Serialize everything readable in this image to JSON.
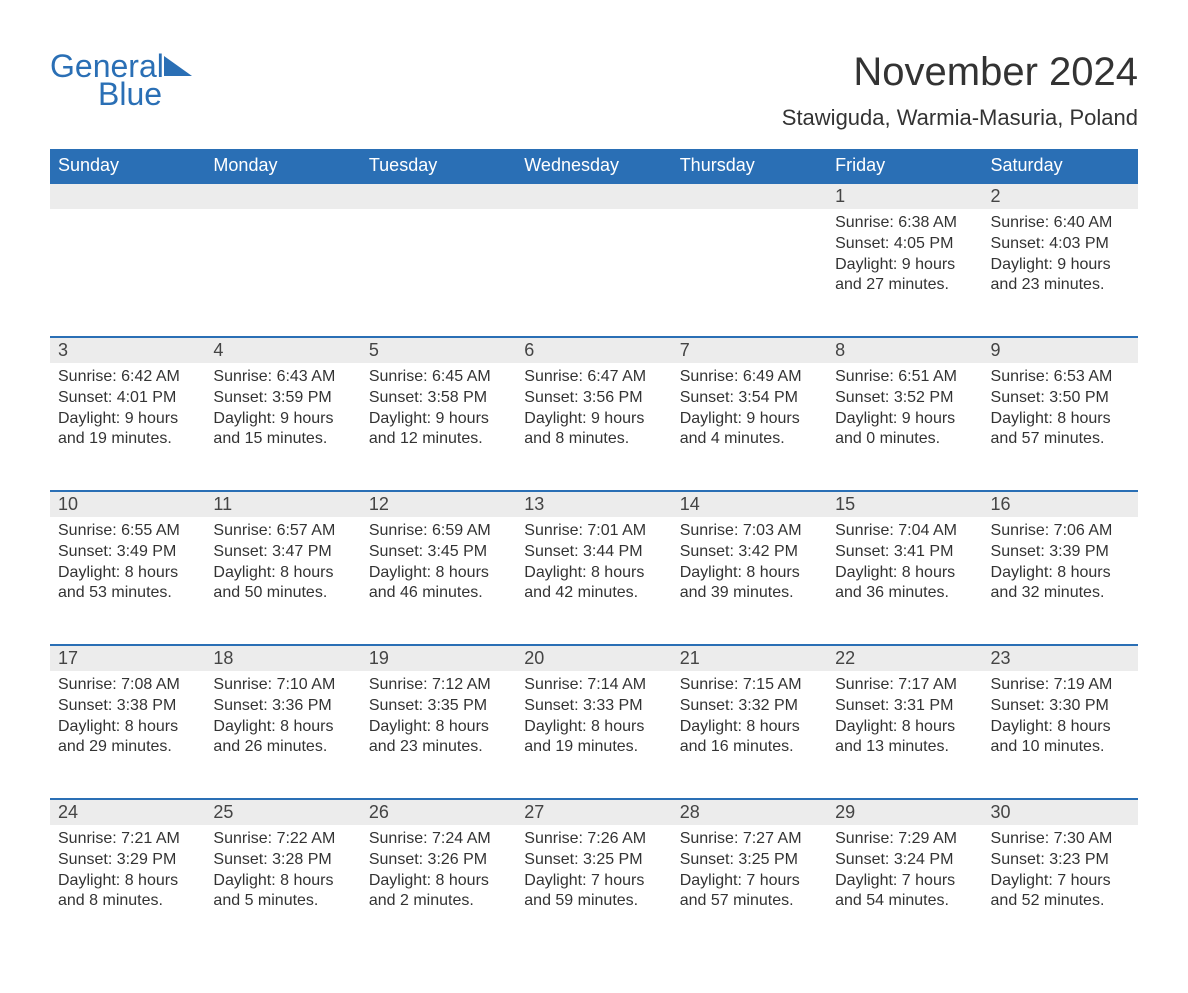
{
  "brand": {
    "word1": "General",
    "word2": "Blue",
    "brand_color": "#2a6fb5"
  },
  "title": "November 2024",
  "location": "Stawiguda, Warmia-Masuria, Poland",
  "colors": {
    "header_bg": "#2a6fb5",
    "header_text": "#ffffff",
    "daynum_bg": "#ececec",
    "row_border": "#2a6fb5",
    "text": "#333333",
    "page_bg": "#ffffff"
  },
  "typography": {
    "title_fontsize": 40,
    "location_fontsize": 22,
    "dayheader_fontsize": 18,
    "daynum_fontsize": 18,
    "detail_fontsize": 16,
    "font_family": "Arial"
  },
  "day_headers": [
    "Sunday",
    "Monday",
    "Tuesday",
    "Wednesday",
    "Thursday",
    "Friday",
    "Saturday"
  ],
  "weeks": [
    {
      "days": [
        null,
        null,
        null,
        null,
        null,
        {
          "n": "1",
          "sunrise": "6:38 AM",
          "sunset": "4:05 PM",
          "daylight_h": "9",
          "daylight_m": "27"
        },
        {
          "n": "2",
          "sunrise": "6:40 AM",
          "sunset": "4:03 PM",
          "daylight_h": "9",
          "daylight_m": "23"
        }
      ]
    },
    {
      "days": [
        {
          "n": "3",
          "sunrise": "6:42 AM",
          "sunset": "4:01 PM",
          "daylight_h": "9",
          "daylight_m": "19"
        },
        {
          "n": "4",
          "sunrise": "6:43 AM",
          "sunset": "3:59 PM",
          "daylight_h": "9",
          "daylight_m": "15"
        },
        {
          "n": "5",
          "sunrise": "6:45 AM",
          "sunset": "3:58 PM",
          "daylight_h": "9",
          "daylight_m": "12"
        },
        {
          "n": "6",
          "sunrise": "6:47 AM",
          "sunset": "3:56 PM",
          "daylight_h": "9",
          "daylight_m": "8"
        },
        {
          "n": "7",
          "sunrise": "6:49 AM",
          "sunset": "3:54 PM",
          "daylight_h": "9",
          "daylight_m": "4"
        },
        {
          "n": "8",
          "sunrise": "6:51 AM",
          "sunset": "3:52 PM",
          "daylight_h": "9",
          "daylight_m": "0"
        },
        {
          "n": "9",
          "sunrise": "6:53 AM",
          "sunset": "3:50 PM",
          "daylight_h": "8",
          "daylight_m": "57"
        }
      ]
    },
    {
      "days": [
        {
          "n": "10",
          "sunrise": "6:55 AM",
          "sunset": "3:49 PM",
          "daylight_h": "8",
          "daylight_m": "53"
        },
        {
          "n": "11",
          "sunrise": "6:57 AM",
          "sunset": "3:47 PM",
          "daylight_h": "8",
          "daylight_m": "50"
        },
        {
          "n": "12",
          "sunrise": "6:59 AM",
          "sunset": "3:45 PM",
          "daylight_h": "8",
          "daylight_m": "46"
        },
        {
          "n": "13",
          "sunrise": "7:01 AM",
          "sunset": "3:44 PM",
          "daylight_h": "8",
          "daylight_m": "42"
        },
        {
          "n": "14",
          "sunrise": "7:03 AM",
          "sunset": "3:42 PM",
          "daylight_h": "8",
          "daylight_m": "39"
        },
        {
          "n": "15",
          "sunrise": "7:04 AM",
          "sunset": "3:41 PM",
          "daylight_h": "8",
          "daylight_m": "36"
        },
        {
          "n": "16",
          "sunrise": "7:06 AM",
          "sunset": "3:39 PM",
          "daylight_h": "8",
          "daylight_m": "32"
        }
      ]
    },
    {
      "days": [
        {
          "n": "17",
          "sunrise": "7:08 AM",
          "sunset": "3:38 PM",
          "daylight_h": "8",
          "daylight_m": "29"
        },
        {
          "n": "18",
          "sunrise": "7:10 AM",
          "sunset": "3:36 PM",
          "daylight_h": "8",
          "daylight_m": "26"
        },
        {
          "n": "19",
          "sunrise": "7:12 AM",
          "sunset": "3:35 PM",
          "daylight_h": "8",
          "daylight_m": "23"
        },
        {
          "n": "20",
          "sunrise": "7:14 AM",
          "sunset": "3:33 PM",
          "daylight_h": "8",
          "daylight_m": "19"
        },
        {
          "n": "21",
          "sunrise": "7:15 AM",
          "sunset": "3:32 PM",
          "daylight_h": "8",
          "daylight_m": "16"
        },
        {
          "n": "22",
          "sunrise": "7:17 AM",
          "sunset": "3:31 PM",
          "daylight_h": "8",
          "daylight_m": "13"
        },
        {
          "n": "23",
          "sunrise": "7:19 AM",
          "sunset": "3:30 PM",
          "daylight_h": "8",
          "daylight_m": "10"
        }
      ]
    },
    {
      "days": [
        {
          "n": "24",
          "sunrise": "7:21 AM",
          "sunset": "3:29 PM",
          "daylight_h": "8",
          "daylight_m": "8"
        },
        {
          "n": "25",
          "sunrise": "7:22 AM",
          "sunset": "3:28 PM",
          "daylight_h": "8",
          "daylight_m": "5"
        },
        {
          "n": "26",
          "sunrise": "7:24 AM",
          "sunset": "3:26 PM",
          "daylight_h": "8",
          "daylight_m": "2"
        },
        {
          "n": "27",
          "sunrise": "7:26 AM",
          "sunset": "3:25 PM",
          "daylight_h": "7",
          "daylight_m": "59"
        },
        {
          "n": "28",
          "sunrise": "7:27 AM",
          "sunset": "3:25 PM",
          "daylight_h": "7",
          "daylight_m": "57"
        },
        {
          "n": "29",
          "sunrise": "7:29 AM",
          "sunset": "3:24 PM",
          "daylight_h": "7",
          "daylight_m": "54"
        },
        {
          "n": "30",
          "sunrise": "7:30 AM",
          "sunset": "3:23 PM",
          "daylight_h": "7",
          "daylight_m": "52"
        }
      ]
    }
  ],
  "labels": {
    "sunrise_prefix": "Sunrise: ",
    "sunset_prefix": "Sunset: ",
    "daylight_prefix": "Daylight: ",
    "hours_word": " hours",
    "and_word": "and ",
    "minutes_word": " minutes."
  }
}
